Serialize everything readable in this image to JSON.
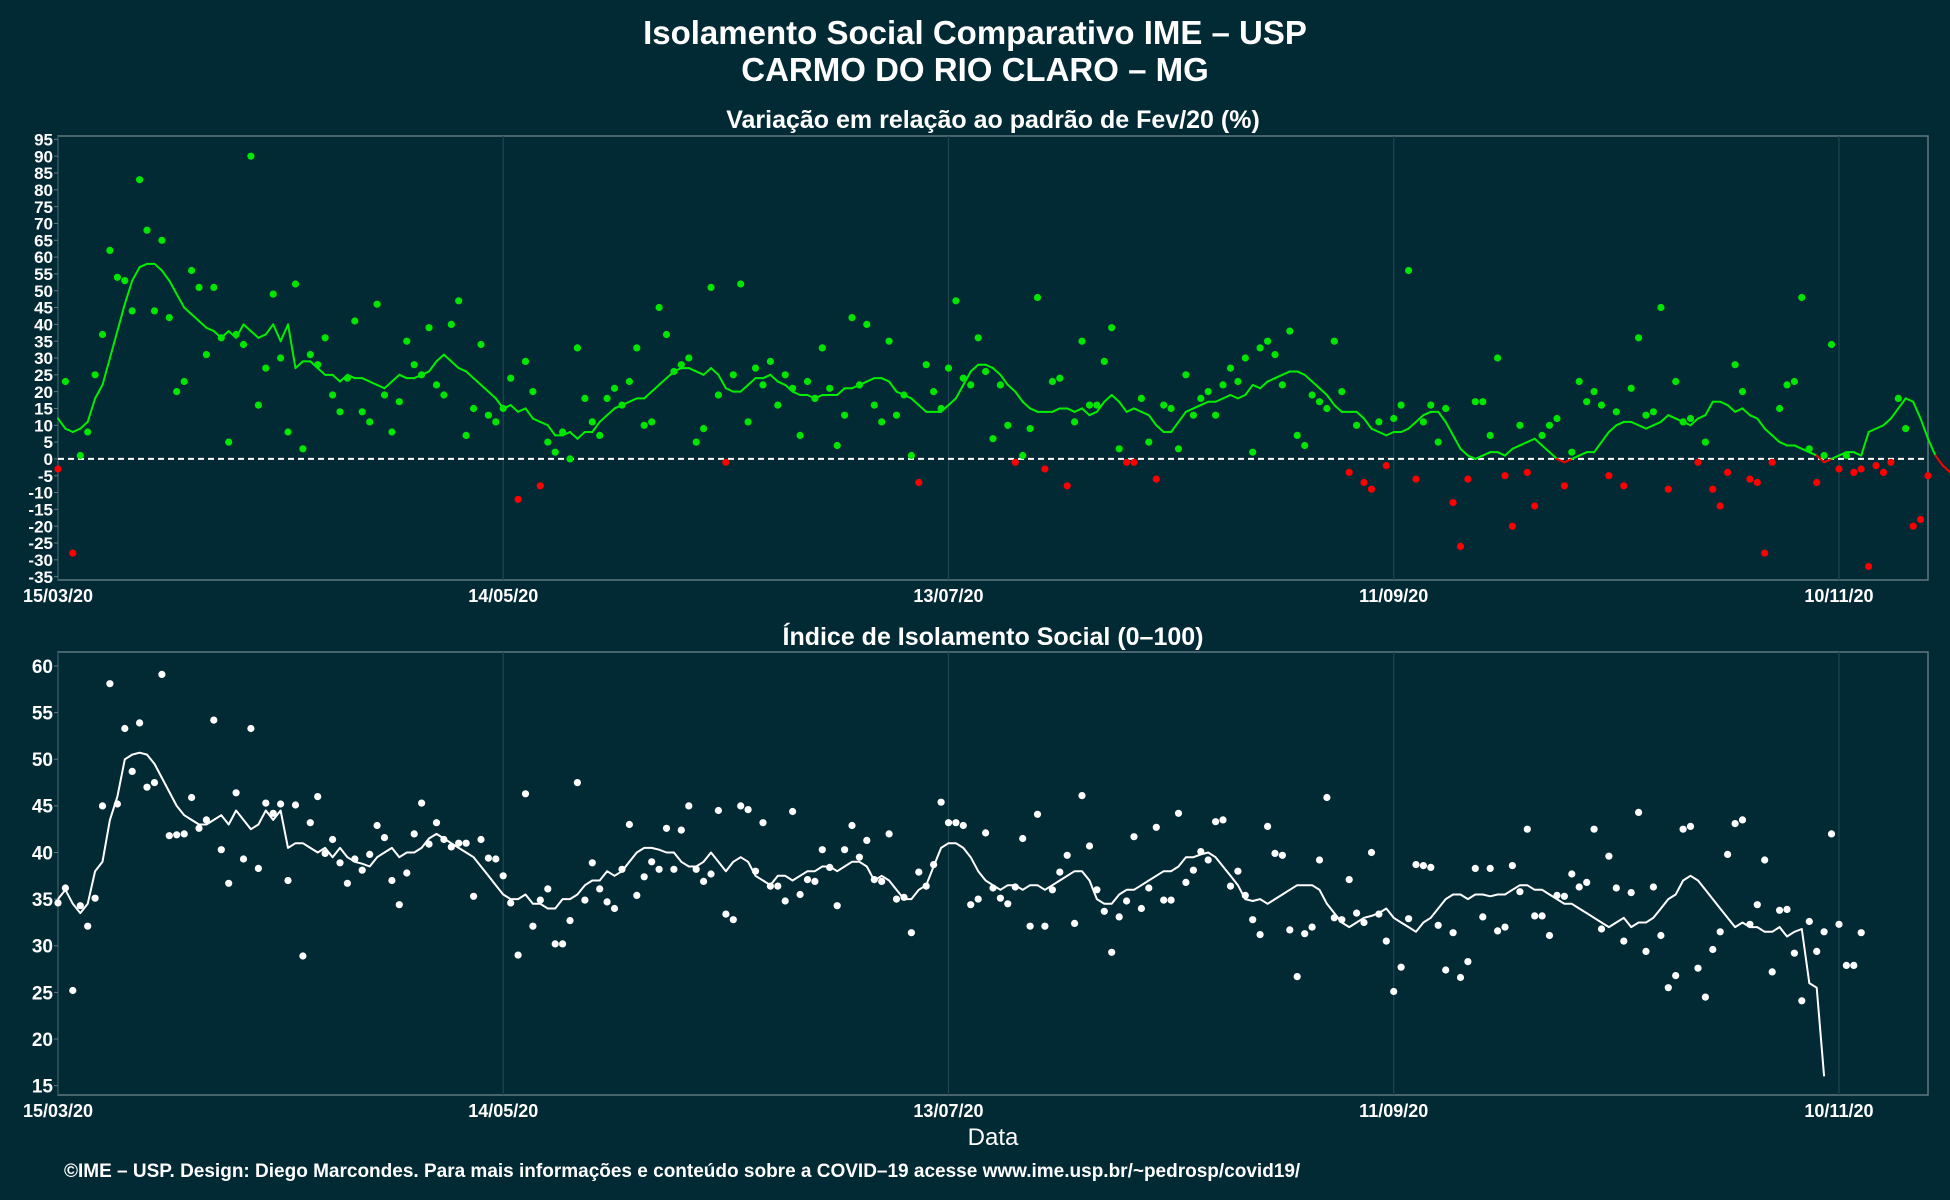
{
  "header": {
    "title_line1": "Isolamento Social Comparativo IME – USP",
    "title_line2": "CARMO DO RIO CLARO – MG"
  },
  "footer": {
    "credit": "©IME – USP. Design: Diego Marcondes. Para mais informações e conteúdo sobre a COVID–19 acesse www.ime.usp.br/~pedrosp/covid19/"
  },
  "colors": {
    "background": "#022a35",
    "panel_border": "#5f7880",
    "grid": "#1f4550",
    "positive_points": "#00e600",
    "negative_points": "#ff0000",
    "trend_positive": "#00ee00",
    "trend_negative": "#ff0000",
    "index_points": "#ffffff",
    "index_line": "#ffffff",
    "zero_line": "#ffffff"
  },
  "chart_data": [
    {
      "type": "scatter",
      "title": "Variação em relação ao padrão de Fev/20 (%)",
      "xlabel": "",
      "ylabel": "",
      "x_start": "2020-03-15",
      "x_end": "2020-11-22",
      "xlim": [
        "2020-03-15",
        "2020-11-22"
      ],
      "ylim": [
        -36,
        96
      ],
      "yticks": [
        -35,
        -30,
        -25,
        -20,
        -15,
        -10,
        -5,
        0,
        5,
        10,
        15,
        20,
        25,
        30,
        35,
        40,
        45,
        50,
        55,
        60,
        65,
        70,
        75,
        80,
        85,
        90,
        95
      ],
      "xtick_labels": [
        "15/03/20",
        "14/05/20",
        "13/07/20",
        "11/09/20",
        "10/11/20"
      ],
      "grid": "vertical",
      "reference_line": 0,
      "point_color_rule": "green when value >= 0, red when value < 0",
      "values": [
        -3,
        23,
        -28,
        1,
        8,
        25,
        37,
        62,
        54,
        53,
        44,
        83,
        68,
        44,
        65,
        42,
        20,
        23,
        56,
        51,
        31,
        51,
        36,
        5,
        37,
        34,
        90,
        16,
        27,
        49,
        30,
        8,
        52,
        3,
        31,
        28,
        36,
        19,
        14,
        24,
        41,
        14,
        11,
        46,
        19,
        8,
        17,
        35,
        28,
        25,
        39,
        22,
        19,
        40,
        47,
        7,
        15,
        34,
        13,
        11,
        15,
        24,
        -12,
        29,
        20,
        -8,
        5,
        2,
        8,
        0,
        33,
        18,
        11,
        7,
        18,
        21,
        16,
        23,
        33,
        10,
        11,
        45,
        37,
        26,
        28,
        30,
        5,
        9,
        51,
        19,
        -1,
        25,
        52,
        11,
        27,
        22,
        29,
        16,
        25,
        21,
        7,
        23,
        18,
        33,
        21,
        4,
        13,
        42,
        22,
        40,
        16,
        11,
        35,
        13,
        19,
        1,
        -7,
        28,
        20,
        15,
        27,
        47,
        24,
        22,
        36,
        26,
        6,
        22,
        10,
        -1,
        1,
        9,
        48,
        -3,
        23,
        24,
        -8,
        11,
        35,
        16,
        16,
        29,
        39,
        3,
        -1,
        -1,
        18,
        5,
        -6,
        16,
        15,
        3,
        25,
        13,
        18,
        20,
        13,
        22,
        27,
        23,
        30,
        2,
        33,
        35,
        31,
        22,
        38,
        7,
        4,
        19,
        17,
        15,
        35,
        20,
        -4,
        10,
        -7,
        -9,
        11,
        -2,
        12,
        16,
        56,
        -6,
        11,
        16,
        5,
        15,
        -13,
        -26,
        -6,
        17,
        17,
        7,
        30,
        -5,
        -20,
        10,
        -4,
        -14,
        7,
        10,
        12,
        -8,
        2,
        23,
        17,
        20,
        16,
        -5,
        14,
        -8,
        21,
        36,
        13,
        14,
        45,
        -9,
        23,
        11,
        12,
        -1,
        5,
        -9,
        -14,
        -4,
        28,
        20,
        -6,
        -7,
        -28,
        -1,
        15,
        22,
        23,
        48,
        3,
        -7,
        1,
        34,
        -3,
        1,
        -4,
        -3,
        -32,
        -2,
        -4,
        -1,
        18,
        9,
        -20,
        -18,
        -5
      ],
      "trend": [
        12,
        9,
        8,
        9,
        11,
        18,
        22,
        30,
        38,
        46,
        53,
        57,
        58,
        58,
        56,
        53,
        49,
        45,
        43,
        41,
        39,
        38,
        36,
        38,
        36,
        40,
        38,
        36,
        37,
        40,
        35,
        40,
        27,
        29,
        29,
        27,
        25,
        25,
        23,
        25,
        24,
        24,
        23,
        22,
        21,
        23,
        25,
        24,
        24,
        25,
        26,
        29,
        31,
        29,
        27,
        26,
        24,
        22,
        20,
        18,
        15,
        16,
        14,
        15,
        12,
        11,
        10,
        7,
        7,
        8,
        6,
        8,
        8,
        11,
        13,
        15,
        16,
        17,
        18,
        18,
        20,
        22,
        24,
        26,
        27,
        27,
        26,
        25,
        27,
        25,
        21,
        20,
        20,
        22,
        24,
        24,
        25,
        23,
        22,
        20,
        19,
        19,
        18,
        19,
        19,
        19,
        21,
        21,
        22,
        23,
        24,
        24,
        23,
        20,
        19,
        18,
        16,
        14,
        14,
        14,
        16,
        18,
        22,
        26,
        28,
        28,
        27,
        25,
        22,
        20,
        17,
        15,
        14,
        14,
        14,
        15,
        15,
        14,
        15,
        13,
        14,
        17,
        19,
        17,
        14,
        15,
        14,
        13,
        10,
        8,
        8,
        11,
        14,
        15,
        16,
        17,
        17,
        18,
        19,
        18,
        19,
        22,
        21,
        23,
        24,
        25,
        26,
        26,
        25,
        23,
        21,
        19,
        16,
        14,
        14,
        14,
        12,
        9,
        8,
        7,
        8,
        8,
        9,
        11,
        13,
        14,
        14,
        11,
        7,
        3,
        1,
        0,
        1,
        2,
        2,
        1,
        3,
        4,
        5,
        6,
        4,
        2,
        0,
        -1,
        0,
        1,
        2,
        2,
        5,
        8,
        10,
        11,
        11,
        10,
        9,
        10,
        11,
        13,
        12,
        11,
        10,
        12,
        13,
        17,
        17,
        16,
        14,
        15,
        13,
        12,
        9,
        7,
        5,
        4,
        4,
        3,
        2,
        1,
        -1,
        0,
        1,
        2,
        2,
        1,
        8,
        9,
        10,
        12,
        15,
        18,
        17,
        12,
        6,
        1,
        -2,
        -4,
        -5,
        -4,
        -3,
        -3,
        -2,
        -3,
        -3
      ]
    },
    {
      "type": "scatter",
      "title": "Índice de Isolamento Social (0–100)",
      "xlabel": "Data",
      "ylabel": "",
      "x_start": "2020-03-15",
      "x_end": "2020-11-22",
      "xlim": [
        "2020-03-15",
        "2020-11-22"
      ],
      "ylim": [
        14,
        61.5
      ],
      "yticks": [
        15,
        20,
        25,
        30,
        35,
        40,
        45,
        50,
        55,
        60
      ],
      "xtick_labels": [
        "15/03/20",
        "14/05/20",
        "13/07/20",
        "11/09/20",
        "10/11/20"
      ],
      "grid": "vertical",
      "values": [
        34.6,
        36.2,
        25.2,
        34.3,
        32.1,
        35.1,
        45.0,
        58.1,
        45.2,
        53.3,
        48.7,
        53.9,
        47.0,
        47.5,
        59.1,
        41.8,
        41.9,
        42.0,
        45.9,
        42.6,
        43.5,
        54.2,
        40.3,
        36.7,
        46.4,
        39.3,
        53.3,
        38.3,
        45.3,
        44.2,
        45.2,
        37.0,
        45.1,
        28.9,
        43.2,
        46.0,
        39.9,
        41.4,
        38.9,
        36.7,
        39.3,
        38.1,
        39.8,
        42.9,
        41.6,
        37.0,
        34.4,
        37.8,
        42.0,
        45.3,
        40.9,
        43.2,
        41.4,
        40.6,
        41.0,
        41.0,
        35.3,
        41.4,
        39.4,
        39.3,
        37.5,
        34.6,
        29.0,
        46.3,
        32.1,
        34.9,
        36.1,
        30.2,
        30.2,
        32.7,
        47.5,
        34.9,
        38.9,
        36.1,
        34.7,
        34.0,
        38.2,
        43.0,
        35.4,
        37.4,
        39.0,
        38.2,
        42.6,
        38.2,
        42.4,
        45.0,
        38.2,
        36.9,
        37.7,
        44.5,
        33.4,
        32.8,
        45.0,
        44.6,
        38.0,
        43.2,
        36.4,
        36.4,
        34.8,
        44.4,
        35.5,
        37.1,
        36.9,
        40.3,
        38.4,
        34.3,
        40.3,
        42.9,
        39.5,
        41.3,
        37.1,
        36.9,
        42.0,
        35.0,
        35.2,
        31.4,
        37.9,
        36.4,
        38.7,
        45.4,
        43.2,
        43.2,
        42.9,
        34.4,
        35.0,
        42.1,
        36.2,
        35.1,
        34.5,
        36.3,
        41.5,
        32.1,
        44.1,
        32.1,
        36.0,
        37.9,
        39.7,
        32.4,
        46.1,
        40.7,
        36.0,
        33.7,
        29.3,
        33.1,
        34.8,
        41.7,
        34.0,
        36.2,
        42.7,
        34.9,
        34.9,
        44.2,
        36.8,
        38.1,
        40.1,
        39.2,
        43.3,
        43.5,
        36.4,
        38.0,
        35.4,
        32.8,
        31.2,
        42.8,
        39.9,
        39.7,
        31.7,
        26.7,
        31.3,
        32.0,
        39.2,
        45.9,
        33.0,
        32.8,
        37.1,
        33.5,
        32.5,
        40.0,
        33.4,
        30.5,
        25.1,
        27.7,
        32.9,
        38.7,
        38.6,
        38.4,
        32.2,
        27.4,
        31.4,
        26.6,
        28.3,
        38.3,
        33.1,
        38.3,
        31.6,
        32.0,
        38.6,
        35.8,
        42.5,
        33.2,
        33.2,
        31.1,
        35.4,
        35.3,
        37.7,
        36.3,
        36.8,
        42.5,
        31.8,
        39.6,
        36.2,
        30.5,
        35.7,
        44.3,
        29.4,
        36.3,
        31.1,
        25.5,
        26.8,
        42.5,
        42.8,
        27.6,
        24.5,
        29.6,
        31.5,
        39.8,
        43.1,
        43.5,
        32.3,
        34.4,
        39.2,
        27.2,
        33.8,
        33.9,
        29.2,
        24.1,
        32.6,
        29.4,
        31.5,
        42.0,
        32.3,
        27.9,
        27.9,
        31.4
      ],
      "trend": [
        35.0,
        36.0,
        34.5,
        33.5,
        34.5,
        38.0,
        39.0,
        43.5,
        46.0,
        50.0,
        50.5,
        50.7,
        50.5,
        49.5,
        48.0,
        46.5,
        45.0,
        44.0,
        43.5,
        43.0,
        43.0,
        43.5,
        44.0,
        43.0,
        44.5,
        43.5,
        42.5,
        43.0,
        44.5,
        43.5,
        44.5,
        40.5,
        41.0,
        41.0,
        40.5,
        40.0,
        40.5,
        39.5,
        40.5,
        39.5,
        39.0,
        38.8,
        38.5,
        39.5,
        40.0,
        40.5,
        39.5,
        40.0,
        40.0,
        40.5,
        41.5,
        42.0,
        41.5,
        41.0,
        40.5,
        40.0,
        39.5,
        38.5,
        37.5,
        36.5,
        35.5,
        35.0,
        35.0,
        35.5,
        34.5,
        34.5,
        34.0,
        34.0,
        35.0,
        35.0,
        35.5,
        36.5,
        37.0,
        37.0,
        38.0,
        37.5,
        38.0,
        39.0,
        40.0,
        40.5,
        40.5,
        40.3,
        40.0,
        40.0,
        39.0,
        38.5,
        38.5,
        39.0,
        40.0,
        39.0,
        38.0,
        39.0,
        39.5,
        39.0,
        37.5,
        37.0,
        36.5,
        37.5,
        37.5,
        37.0,
        37.5,
        38.0,
        38.0,
        38.5,
        38.5,
        38.0,
        38.5,
        39.0,
        39.0,
        38.5,
        37.0,
        37.5,
        37.0,
        36.0,
        35.0,
        35.0,
        36.0,
        36.5,
        38.5,
        40.5,
        41.0,
        41.0,
        40.5,
        39.5,
        38.0,
        37.0,
        36.5,
        36.0,
        36.5,
        36.5,
        36.0,
        36.5,
        36.5,
        36.0,
        36.5,
        37.0,
        37.5,
        38.0,
        38.0,
        37.0,
        35.0,
        34.5,
        34.5,
        35.5,
        36.0,
        36.0,
        36.5,
        37.0,
        37.5,
        38.0,
        38.0,
        38.5,
        39.5,
        39.5,
        39.8,
        40.0,
        39.5,
        38.5,
        37.5,
        36.5,
        35.0,
        34.8,
        35.0,
        34.5,
        35.0,
        35.5,
        36.0,
        36.5,
        36.5,
        36.5,
        36.0,
        34.5,
        33.5,
        32.5,
        32.0,
        32.5,
        33.0,
        33.2,
        33.5,
        34.0,
        33.0,
        32.5,
        32.0,
        31.5,
        32.5,
        33.0,
        34.0,
        35.0,
        35.5,
        35.5,
        35.0,
        35.5,
        35.5,
        35.3,
        35.5,
        35.5,
        36.0,
        36.5,
        36.5,
        36.0,
        36.0,
        35.5,
        35.0,
        34.5,
        34.5,
        34.0,
        33.5,
        33.0,
        32.5,
        32.0,
        32.5,
        33.0,
        32.0,
        32.5,
        32.5,
        33.0,
        34.0,
        35.0,
        35.5,
        37.0,
        37.5,
        37.0,
        36.0,
        35.0,
        34.0,
        33.0,
        32.0,
        32.5,
        32.0,
        32.0,
        31.5,
        31.5,
        32.0,
        31.0,
        31.5,
        31.8,
        26.0,
        25.5,
        16.0
      ]
    }
  ]
}
